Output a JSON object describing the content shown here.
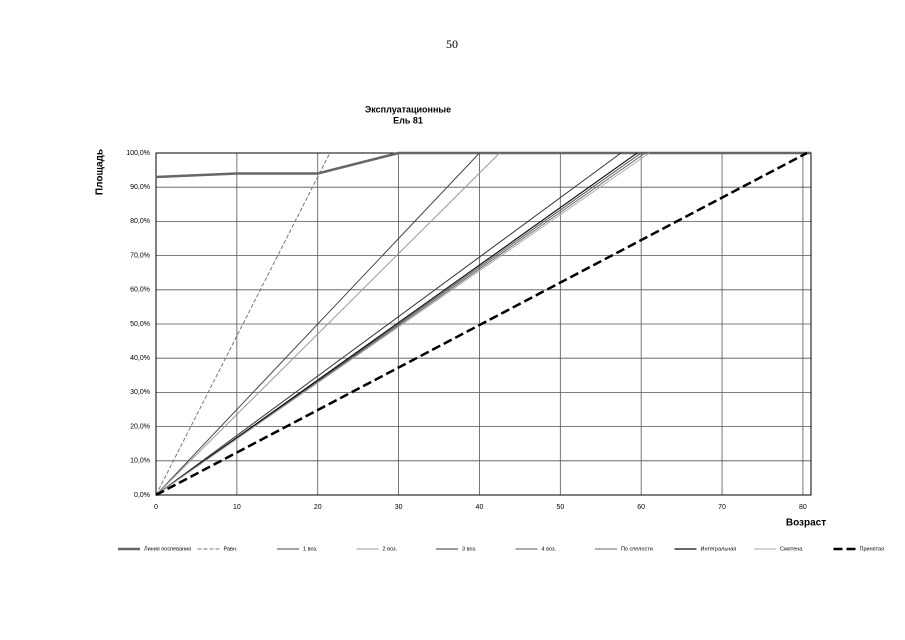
{
  "page_number": "50",
  "chart_data": {
    "type": "line",
    "title": [
      "Эксплуатационные",
      "Ель 81"
    ],
    "x_label": "Возраст",
    "y_label": "Площадь",
    "xlim": [
      0,
      81
    ],
    "xticks": [
      0,
      10,
      20,
      30,
      40,
      50,
      60,
      70,
      80
    ],
    "ylim": [
      0,
      100
    ],
    "yticks": [
      {
        "value": 0,
        "label": "0,0%"
      },
      {
        "value": 10,
        "label": "10,0%"
      },
      {
        "value": 20,
        "label": "20,0%"
      },
      {
        "value": 30,
        "label": "30,0%"
      },
      {
        "value": 40,
        "label": "40,0%"
      },
      {
        "value": 50,
        "label": "50,0%"
      },
      {
        "value": 60,
        "label": "60,0%"
      },
      {
        "value": 70,
        "label": "70,0%"
      },
      {
        "value": 80,
        "label": "80,0%"
      },
      {
        "value": 90,
        "label": "90,0%"
      },
      {
        "value": 100,
        "label": "100,0%"
      }
    ],
    "grid": true,
    "series": [
      {
        "name": "Линия поспевания",
        "color": "#666666",
        "width": 2.5,
        "dash": "none",
        "x": [
          0,
          10,
          20,
          30,
          81
        ],
        "values": [
          93,
          94,
          94,
          100,
          100
        ]
      },
      {
        "name": "Равн.",
        "color": "#777777",
        "width": 1,
        "dash": "4 2",
        "x": [
          0,
          21.5
        ],
        "values": [
          0,
          100
        ]
      },
      {
        "name": "1 воз.",
        "color": "#444444",
        "width": 1,
        "dash": "none",
        "x": [
          0,
          40
        ],
        "values": [
          0,
          100
        ]
      },
      {
        "name": "2 воз.",
        "color": "#999999",
        "width": 1,
        "dash": "none",
        "x": [
          0,
          42.5
        ],
        "values": [
          0,
          100
        ]
      },
      {
        "name": "3 воз.",
        "color": "#333333",
        "width": 1,
        "dash": "none",
        "x": [
          0,
          57.5
        ],
        "values": [
          0,
          100
        ]
      },
      {
        "name": "4 воз.",
        "color": "#555555",
        "width": 1,
        "dash": "none",
        "x": [
          0,
          60
        ],
        "values": [
          0,
          100
        ]
      },
      {
        "name": "По спелости",
        "color": "#666666",
        "width": 1,
        "dash": "none",
        "x": [
          0,
          60.5
        ],
        "values": [
          0,
          100
        ]
      },
      {
        "name": "Интегральная",
        "color": "#111111",
        "width": 1.2,
        "dash": "none",
        "x": [
          0,
          59.5
        ],
        "values": [
          0,
          100
        ]
      },
      {
        "name": "Смятена",
        "color": "#aaaaaa",
        "width": 1,
        "dash": "none",
        "x": [
          0,
          61
        ],
        "values": [
          0,
          100
        ]
      },
      {
        "name": "Принятая",
        "color": "#000000",
        "width": 2.5,
        "dash": "9 4",
        "x": [
          0,
          80.5
        ],
        "values": [
          0,
          100
        ]
      }
    ]
  }
}
